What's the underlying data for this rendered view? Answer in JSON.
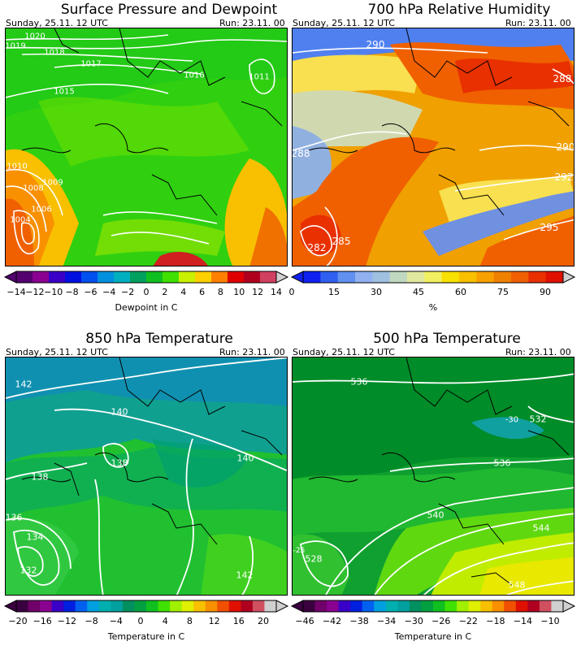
{
  "panels": [
    {
      "title": "Surface Pressure and Dewpoint",
      "date": "Sunday, 25.11. 12 UTC",
      "run": "Run: 23.11. 00",
      "colorbar_label": "Dewpoint in C",
      "colorbar_ticks": [
        "−14",
        "−12",
        "−10",
        "−8",
        "−6",
        "−4",
        "−2",
        "0",
        "2",
        "4",
        "6",
        "8",
        "10",
        "12",
        "14"
      ],
      "colors": [
        "#54006e",
        "#8a0090",
        "#3a00c8",
        "#0010e0",
        "#0050f0",
        "#0090e0",
        "#00b0c0",
        "#00a060",
        "#10c020",
        "#40e000",
        "#c8f000",
        "#ffd000",
        "#ff8000",
        "#e00000",
        "#b00020",
        "#d04060"
      ],
      "isolines": [
        "1020",
        "1019",
        "1018",
        "1017",
        "1016",
        "1015",
        "1010",
        "1009",
        "1008",
        "1006",
        "1004",
        "1011"
      ]
    },
    {
      "title": "700 hPa Relative Humidity",
      "date": "Sunday, 25.11. 12 UTC",
      "run": "Run: 23.11. 00",
      "colorbar_label": "%",
      "colorbar_ticks": [
        "0",
        "15",
        "30",
        "45",
        "60",
        "75",
        "90"
      ],
      "colors": [
        "#1020f0",
        "#3060f0",
        "#6090f0",
        "#90b0f0",
        "#a0c0e0",
        "#c0d8c0",
        "#e0e8a0",
        "#f0f060",
        "#f8e000",
        "#f8c000",
        "#f8a000",
        "#f08000",
        "#f06000",
        "#e83000",
        "#e01000"
      ],
      "isolines": [
        "290",
        "288",
        "288",
        "290",
        "292",
        "295",
        "285",
        "282"
      ]
    },
    {
      "title": "850 hPa Temperature",
      "date": "Sunday, 25.11. 12 UTC",
      "run": "Run: 23.11. 00",
      "colorbar_label": "Temperature in C",
      "colorbar_ticks": [
        "−20",
        "−16",
        "−12",
        "−8",
        "−4",
        "0",
        "4",
        "8",
        "12",
        "16",
        "20"
      ],
      "colors": [
        "#3a0040",
        "#70006a",
        "#8a0090",
        "#3a00c8",
        "#0020e0",
        "#0060f0",
        "#00a0e0",
        "#00b0b0",
        "#00a0a0",
        "#009060",
        "#00a040",
        "#10c020",
        "#40e000",
        "#a0f000",
        "#e0f000",
        "#f8c000",
        "#f89000",
        "#f05000",
        "#e01000",
        "#b00020",
        "#d05060",
        "#d0d0d0"
      ],
      "isolines": [
        "142",
        "140",
        "138",
        "138",
        "140",
        "136",
        "134",
        "132",
        "142"
      ]
    },
    {
      "title": "500 hPa Temperature",
      "date": "Sunday, 25.11. 12 UTC",
      "run": "Run: 23.11. 00",
      "colorbar_label": "Temperature in C",
      "colorbar_ticks": [
        "−46",
        "−42",
        "−38",
        "−34",
        "−30",
        "−26",
        "−22",
        "−18",
        "−14",
        "−10"
      ],
      "colors": [
        "#3a0040",
        "#70006a",
        "#8a0090",
        "#3a00c8",
        "#0020e0",
        "#0060f0",
        "#00a0e0",
        "#00b0b0",
        "#00a0a0",
        "#009060",
        "#00a040",
        "#10c020",
        "#40e000",
        "#a0f000",
        "#e0f000",
        "#f8c000",
        "#f89000",
        "#f05000",
        "#e01000",
        "#b00020",
        "#d05060",
        "#d0d0d0"
      ],
      "isolines": [
        "536",
        "532",
        "-30",
        "536",
        "540",
        "544",
        "548",
        "528",
        "-25"
      ]
    }
  ]
}
